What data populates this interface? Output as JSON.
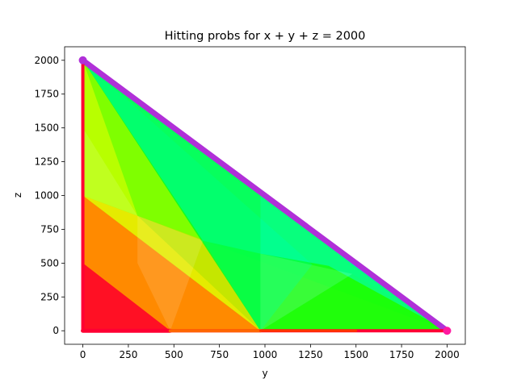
{
  "chart_data": {
    "type": "scatter",
    "title": "Hitting probs for x + y + z = 2000",
    "xlabel": "y",
    "ylabel": "z",
    "xlim": [
      -100,
      2100
    ],
    "ylim": [
      -100,
      2100
    ],
    "xticks": [
      0,
      250,
      500,
      750,
      1000,
      1250,
      1500,
      1750,
      2000
    ],
    "yticks": [
      0,
      250,
      500,
      750,
      1000,
      1250,
      1500,
      1750,
      2000
    ],
    "grid": false,
    "legend": "none",
    "total": 2000,
    "colormap": "hsv",
    "colors": {
      "low": "#ff0033",
      "mid_low": "#ffe600",
      "mid": "#00ff22",
      "mid_high": "#00e6ff",
      "high": "#b030d8",
      "corner_end": "#ff1aa0"
    }
  }
}
